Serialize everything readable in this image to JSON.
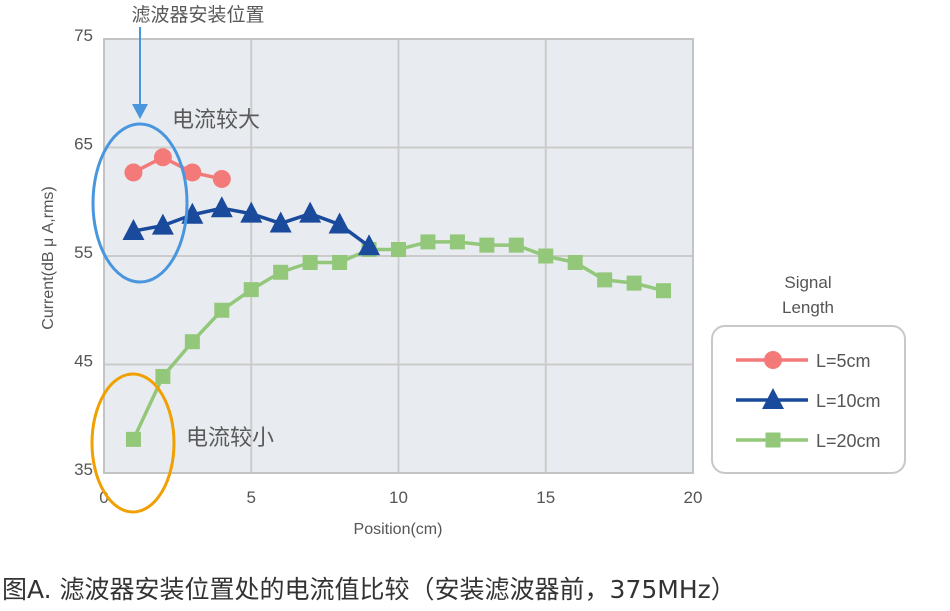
{
  "caption": "图A. 滤波器安装位置处的电流值比较（安装滤波器前，375MHz）",
  "annotations": {
    "filter_position": "滤波器安装位置",
    "large_current": "电流较大",
    "small_current": "电流较小"
  },
  "colors": {
    "plot_bg": "#E8ECF0",
    "grid": "#CBCBCB",
    "series_5cm": "#F47A7A",
    "series_10cm": "#1A4A9C",
    "series_20cm": "#93C77A",
    "highlight_large": "#4A96DE",
    "highlight_small": "#F0A000",
    "arrow": "#4A96DE"
  },
  "chart_data": {
    "type": "line",
    "title": "",
    "xlabel": "Position(cm)",
    "ylabel": "Current(dB μ A,rms)",
    "xlim": [
      0,
      20
    ],
    "ylim": [
      35,
      75
    ],
    "xticks": [
      0,
      5,
      10,
      15,
      20
    ],
    "yticks": [
      35,
      45,
      55,
      65,
      75
    ],
    "grid": true,
    "legend_title": "Signal Length",
    "legend_position": "right",
    "series": [
      {
        "name": "L=5cm",
        "marker": "circle",
        "color": "#F47A7A",
        "x": [
          1,
          2,
          3,
          4
        ],
        "values": [
          62.7,
          64.1,
          62.7,
          62.1
        ]
      },
      {
        "name": "L=10cm",
        "marker": "triangle",
        "color": "#1A4A9C",
        "x": [
          1,
          2,
          3,
          4,
          5,
          6,
          7,
          8,
          9
        ],
        "values": [
          57.3,
          57.8,
          58.8,
          59.4,
          58.9,
          58.0,
          58.9,
          57.9,
          55.9
        ]
      },
      {
        "name": "L=20cm",
        "marker": "square",
        "color": "#93C77A",
        "x": [
          1,
          2,
          3,
          4,
          5,
          6,
          7,
          8,
          9,
          10,
          11,
          12,
          13,
          14,
          15,
          16,
          17,
          18,
          19
        ],
        "values": [
          38.1,
          43.9,
          47.1,
          50.0,
          51.9,
          53.5,
          54.4,
          54.4,
          55.6,
          55.6,
          56.3,
          56.3,
          56.0,
          56.0,
          55.0,
          54.4,
          52.8,
          52.5,
          51.8
        ]
      }
    ],
    "annotations": [
      {
        "text": "滤波器安装位置",
        "type": "arrow",
        "x": 1.2
      },
      {
        "text": "电流较大",
        "type": "ellipse",
        "x_center": 1.2,
        "y_center": 60.5
      },
      {
        "text": "电流较小",
        "type": "ellipse",
        "x_center": 1.0,
        "y_center": 38.5
      }
    ]
  }
}
